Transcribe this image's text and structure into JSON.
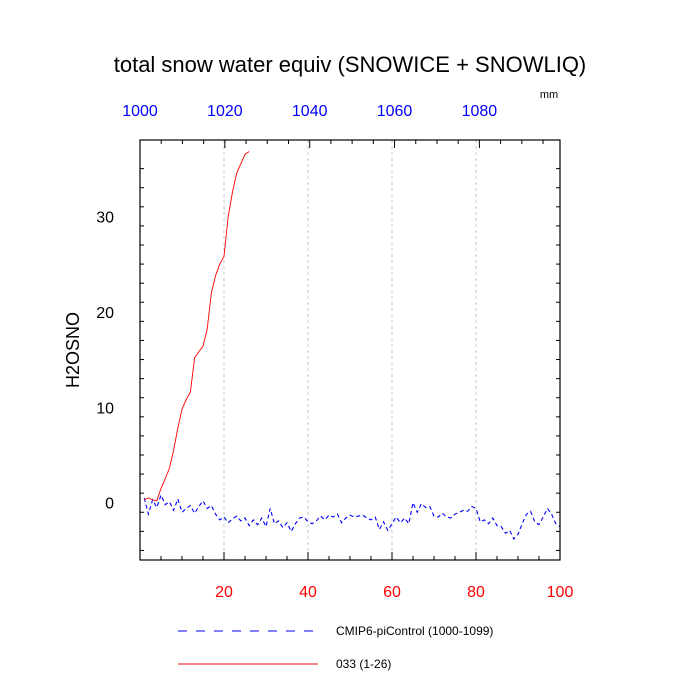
{
  "chart_data": {
    "type": "line",
    "title": "total snow water equiv (SNOWICE + SNOWLIQ)",
    "ylabel": "H2OSNO",
    "units": "mm",
    "xlim": [
      0,
      100
    ],
    "ylim": [
      -6,
      38
    ],
    "x_ticks": [
      "20",
      "40",
      "60",
      "80",
      "100"
    ],
    "top_xlim": [
      1000,
      1099
    ],
    "top_x_ticks": [
      "1000",
      "1020",
      "1040",
      "1060",
      "1080"
    ],
    "y_ticks": [
      "0",
      "10",
      "20",
      "30"
    ],
    "grid": "vertical-dashed",
    "colors": {
      "bottom_axis": "#ff0000",
      "top_axis": "#0000ff"
    },
    "series": [
      {
        "name": "CMIP6-piControl (1000-1099)",
        "color": "#0000ff",
        "style": "dashed",
        "x": [
          1,
          2,
          3,
          4,
          5,
          6,
          7,
          8,
          9,
          10,
          11,
          12,
          13,
          14,
          15,
          16,
          17,
          18,
          19,
          20,
          21,
          22,
          23,
          24,
          25,
          26,
          27,
          28,
          29,
          30,
          31,
          32,
          33,
          34,
          35,
          36,
          37,
          38,
          39,
          40,
          41,
          42,
          43,
          44,
          45,
          46,
          47,
          48,
          49,
          50,
          51,
          52,
          53,
          54,
          55,
          56,
          57,
          58,
          59,
          60,
          61,
          62,
          63,
          64,
          65,
          66,
          67,
          68,
          69,
          70,
          71,
          72,
          73,
          74,
          75,
          76,
          77,
          78,
          79,
          80,
          81,
          82,
          83,
          84,
          85,
          86,
          87,
          88,
          89,
          90,
          91,
          92,
          93,
          94,
          95,
          96,
          97,
          98,
          99,
          100
        ],
        "values": [
          0.5,
          -1.2,
          0.3,
          -0.5,
          0.8,
          -0.2,
          0.1,
          -0.8,
          0.4,
          -1.0,
          -0.6,
          -0.3,
          -1.1,
          -0.4,
          0.2,
          -0.6,
          -0.3,
          -1.2,
          -1.8,
          -1.5,
          -2.1,
          -1.7,
          -1.4,
          -1.9,
          -1.6,
          -2.4,
          -1.8,
          -2.3,
          -1.6,
          -2.5,
          -0.6,
          -2.2,
          -1.9,
          -2.6,
          -2.1,
          -3.0,
          -2.2,
          -1.6,
          -1.5,
          -2.0,
          -2.2,
          -1.9,
          -1.4,
          -1.8,
          -1.3,
          -1.5,
          -1.2,
          -2.1,
          -1.6,
          -1.3,
          -1.5,
          -1.4,
          -1.3,
          -1.6,
          -1.8,
          -1.5,
          -2.8,
          -2.0,
          -2.9,
          -2.2,
          -1.5,
          -2.1,
          -1.6,
          -2.2,
          0.0,
          -1.0,
          -0.1,
          -0.5,
          -0.4,
          -1.4,
          -1.5,
          -1.1,
          -1.5,
          -1.6,
          -1.2,
          -1.0,
          -0.8,
          -0.9,
          -0.4,
          -0.6,
          -2.0,
          -1.8,
          -2.2,
          -1.6,
          -2.4,
          -2.5,
          -3.2,
          -2.9,
          -3.8,
          -3.3,
          -2.2,
          -1.2,
          -0.9,
          -2.0,
          -2.3,
          -1.5,
          -0.6,
          -1.2,
          -2.2,
          -2.5
        ]
      },
      {
        "name": "033 (1-26)",
        "color": "#ff0000",
        "style": "solid",
        "x": [
          1,
          2,
          3,
          4,
          5,
          6,
          7,
          8,
          9,
          10,
          11,
          12,
          13,
          14,
          15,
          16,
          17,
          18,
          19,
          20,
          21,
          22,
          23,
          24,
          25,
          26
        ],
        "values": [
          0.3,
          0.5,
          0.3,
          0.2,
          1.5,
          2.5,
          3.6,
          5.5,
          7.8,
          9.8,
          10.8,
          11.6,
          15.2,
          15.8,
          16.4,
          18.2,
          22.0,
          23.8,
          25.0,
          25.8,
          30.0,
          32.5,
          34.5,
          35.5,
          36.5,
          36.8
        ]
      }
    ]
  }
}
